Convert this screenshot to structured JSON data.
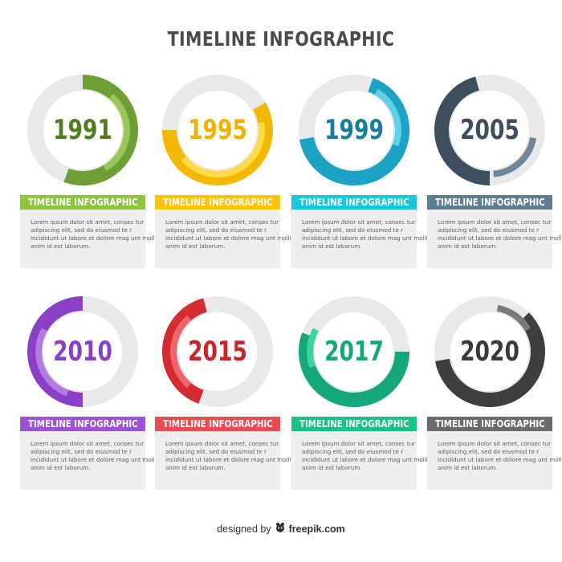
{
  "title": "TIMELINE INFOGRAPHIC",
  "items": [
    {
      "year": "1991",
      "label": "TIMELINE INFOGRAPHIC",
      "color": "#6e9f35",
      "light": "#9bc659",
      "track": "#e6e6e6",
      "body": "Lorem ipsum dolor sit amet, consec tur adipiscing elit, sed do eiusmod te r incididunt ut labore et dolore mag unt mollit anim id est laborum."
    },
    {
      "year": "1995",
      "label": "TIMELINE INFOGRAPHIC",
      "color": "#f5b800",
      "light": "#ffd94a",
      "track": "#e6e6e6",
      "body": "Lorem ipsum dolor sit amet, consec tur adipiscing elit, sed do eiusmod te r incididunt ut labore et dolore mag unt mollit anim id est laborum."
    },
    {
      "year": "1999",
      "label": "TIMELINE INFOGRAPHIC",
      "color": "#1aa3c4",
      "light": "#5fd0e6",
      "track": "#e6e6e6",
      "body": "Lorem ipsum dolor sit amet, consec tur adipiscing elit, sed do eiusmod te r incididunt ut labore et dolore mag unt mollit anim id est laborum."
    },
    {
      "year": "2005",
      "label": "TIMELINE INFOGRAPHIC",
      "color": "#3d4f5e",
      "light": "#6f8799",
      "track": "#e6e6e6",
      "body": "Lorem ipsum dolor sit amet, consec tur adipiscing elit, sed do eiusmod te r incididunt ut labore et dolore mag unt mollit anim id est laborum."
    },
    {
      "year": "2010",
      "label": "TIMELINE INFOGRAPHIC",
      "color": "#8a3fc7",
      "light": "#b27ae3",
      "track": "#e6e6e6",
      "body": "Lorem ipsum dolor sit amet, consec tur adipiscing elit, sed do eiusmod te r incididunt ut labore et dolore mag unt mollit anim id est laborum."
    },
    {
      "year": "2015",
      "label": "TIMELINE INFOGRAPHIC",
      "color": "#d42b30",
      "light": "#f0646a",
      "track": "#e6e6e6",
      "body": "Lorem ipsum dolor sit amet, consec tur adipiscing elit, sed do eiusmod te r incididunt ut labore et dolore mag unt mollit anim id est laborum."
    },
    {
      "year": "2017",
      "label": "TIMELINE INFOGRAPHIC",
      "color": "#14a77a",
      "light": "#3dd3a0",
      "track": "#e6e6e6",
      "body": "Lorem ipsum dolor sit amet, consec tur adipiscing elit, sed do eiusmod te r incididunt ut labore et dolore mag unt mollit anim id est laborum."
    },
    {
      "year": "2020",
      "label": "TIMELINE INFOGRAPHIC",
      "color": "#3e3e3e",
      "light": "#7a7a7a",
      "track": "#e6e6e6",
      "body": "Lorem ipsum dolor sit amet, consec tur adipiscing elit, sed do eiusmod te r incididunt ut labore et dolore mag unt mollit anim id est laborum."
    }
  ],
  "label_colors": [
    "#8dc33f",
    "#ffc20e",
    "#1ec4d9",
    "#607d8f",
    "#9c52d6",
    "#e84c52",
    "#1ac08a",
    "#6b6b6b"
  ],
  "year_colors": [
    "#4f7d22",
    "#f2b000",
    "#177f99",
    "#3d4f5e",
    "#8a3fc7",
    "#c8242a",
    "#14a77a",
    "#3a3a3a"
  ],
  "credit": {
    "prefix": "designed by",
    "icon": "freepik-logo-icon",
    "brand": "freepik.com"
  }
}
